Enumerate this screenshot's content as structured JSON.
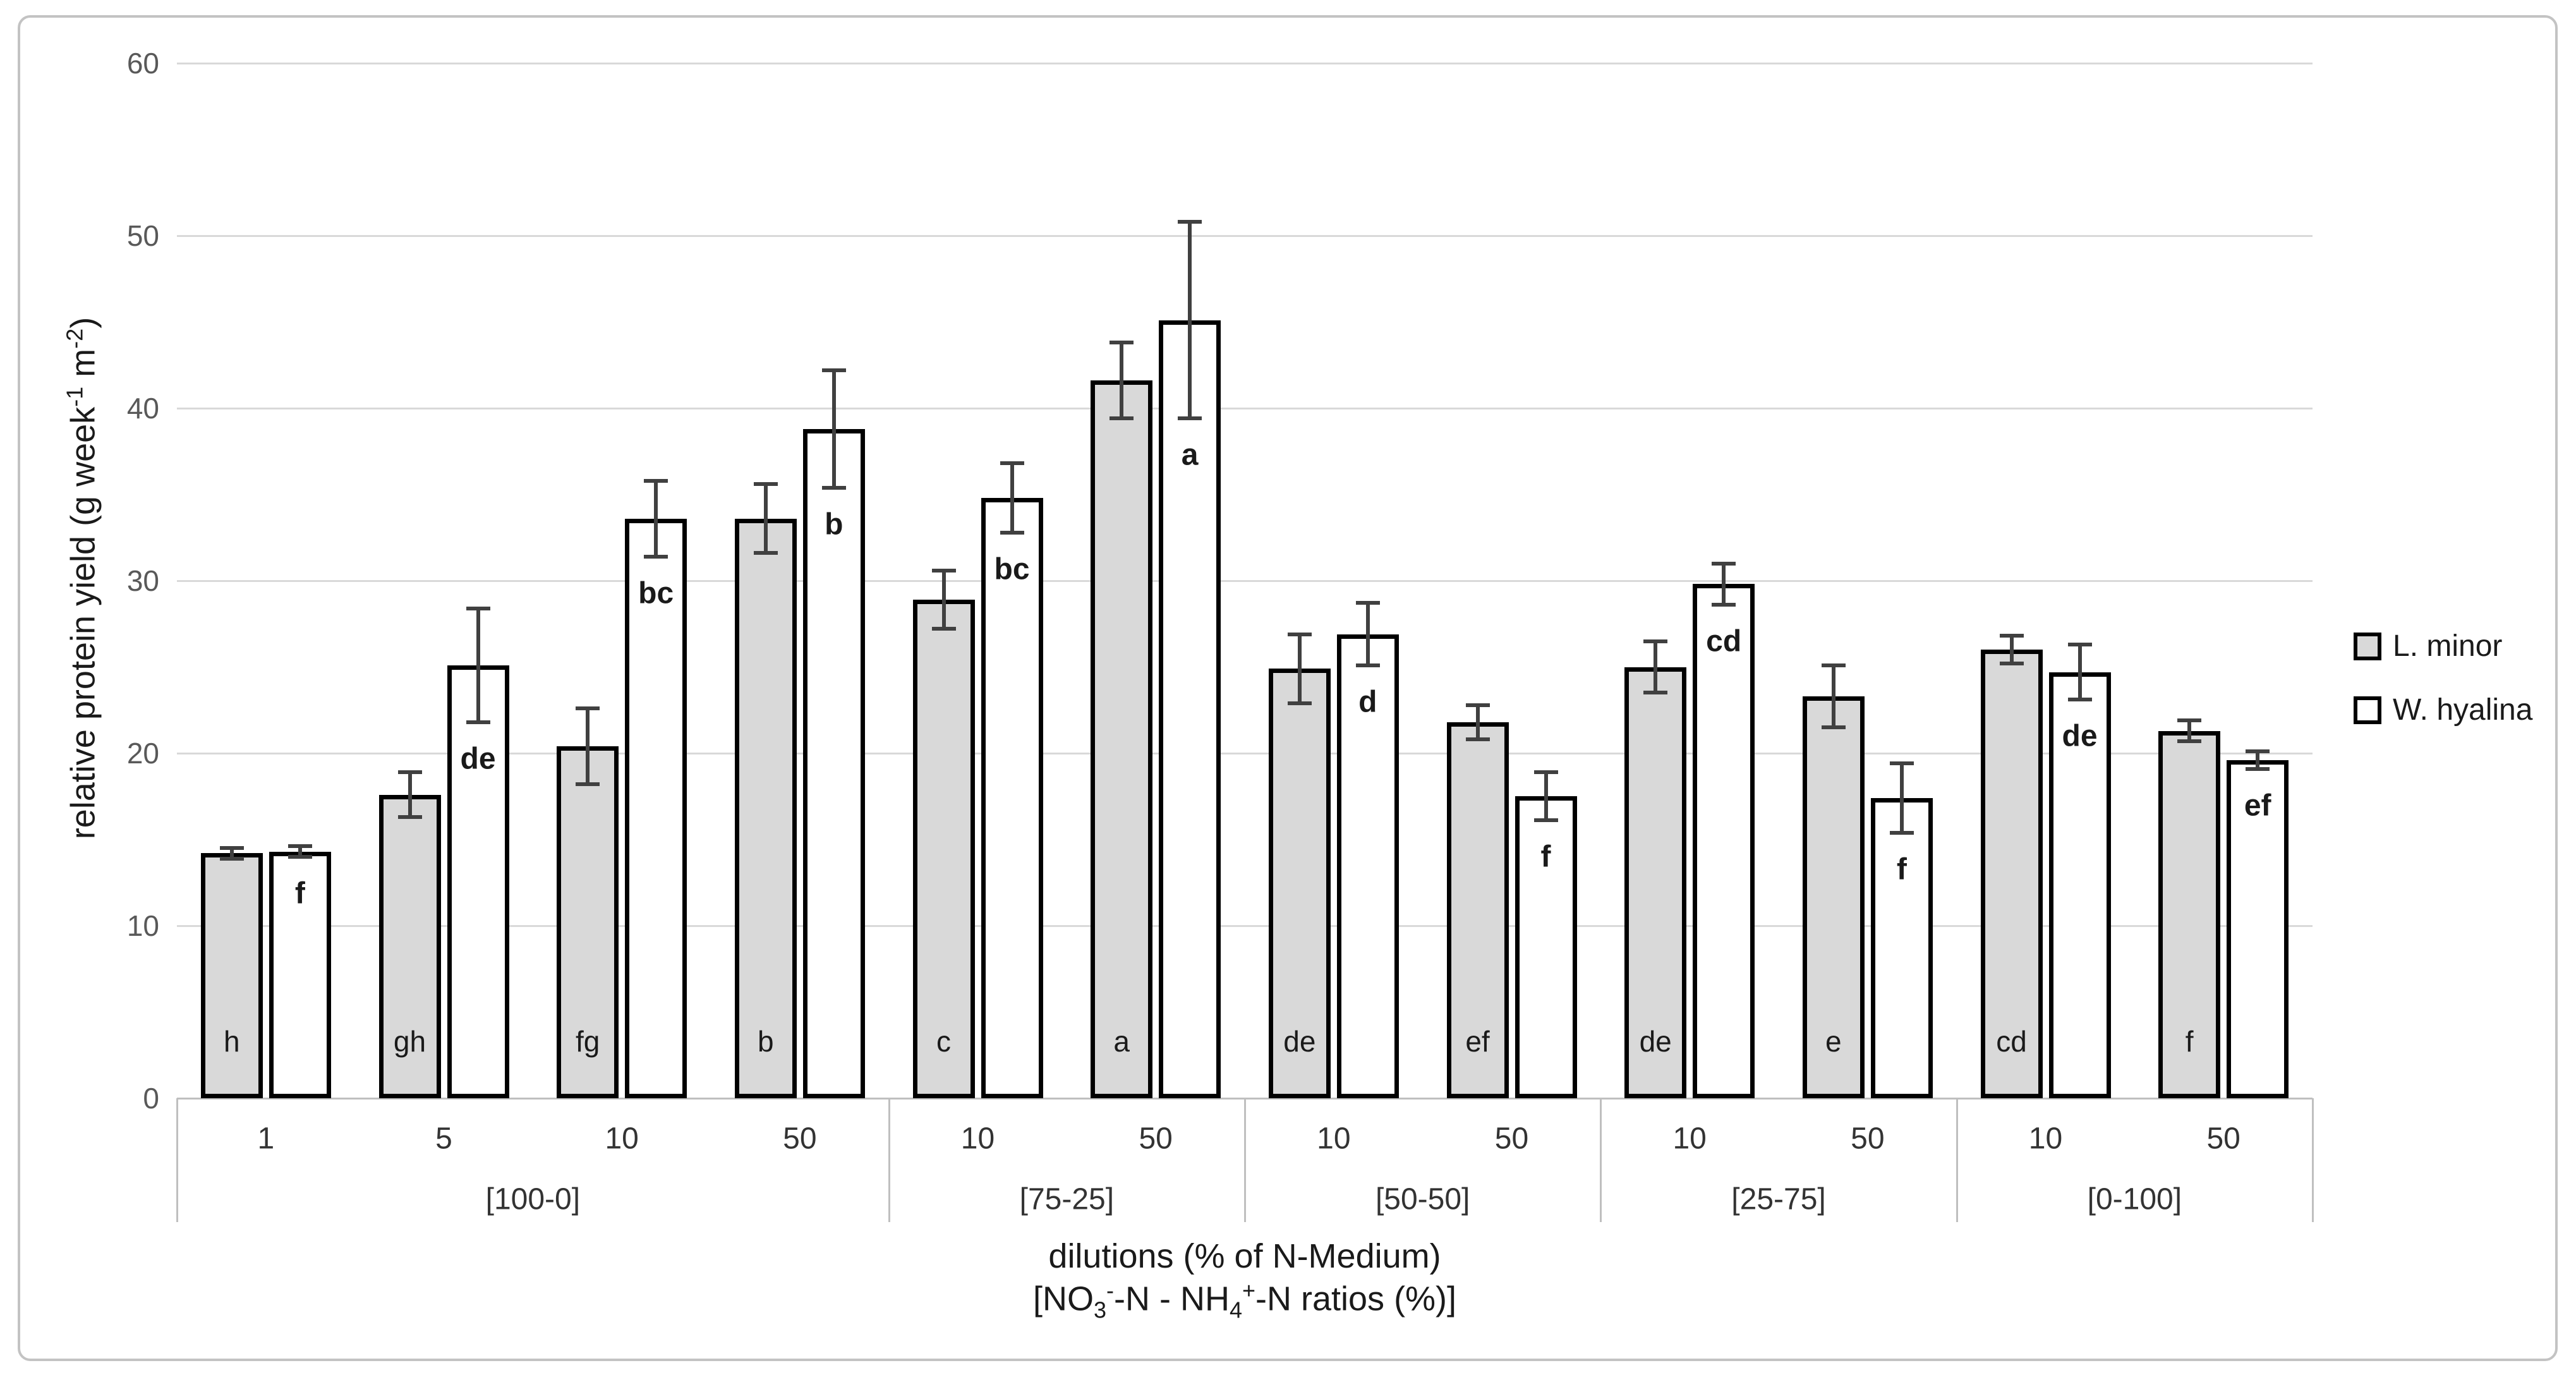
{
  "style": {
    "bar_fill_l_minor": "#d9d9d9",
    "bar_fill_w_hyalina": "#ffffff",
    "bar_border": "#000000",
    "gridline": "#d9d9d9",
    "axis_line": "#bfbfbf",
    "error_bar": "#404040",
    "tick_label": "#595959",
    "text": "#1a1a1a"
  },
  "y_title": {
    "pre": "relative protein yield (g week",
    "sup1": "-1",
    "mid": " m",
    "sup2": "-2",
    "post": ")"
  },
  "x_title_line1": "dilutions (% of N-Medium)",
  "x_title_line2": {
    "pre": "[NO",
    "sub1": "3",
    "sup1": "-",
    "mid": "-N - NH",
    "sub2": "4",
    "sup2": "+",
    "post": "-N ratios (%)]"
  },
  "chart_data": {
    "type": "bar",
    "title": "",
    "ylabel": "relative protein yield (g week-1 m-2)",
    "xlabel": "dilutions (% of N-Medium) [NO3--N - NH4+-N ratios (%)]",
    "ylim": [
      0,
      60
    ],
    "yticks": [
      0,
      10,
      20,
      30,
      40,
      50,
      60
    ],
    "grid": true,
    "legend_position": "right",
    "legend": [
      {
        "label": "L. minor",
        "fill": "#d9d9d9"
      },
      {
        "label": "W. hyalina",
        "fill": "#ffffff"
      }
    ],
    "series": [
      "L. minor",
      "W. hyalina"
    ],
    "groups": [
      {
        "label": "[100-0]",
        "items": [
          {
            "dilution": "1",
            "bars": [
              {
                "series": "L. minor",
                "value": 14.2,
                "err": 0.3,
                "letter": "h"
              },
              {
                "series": "W. hyalina",
                "value": 14.3,
                "err": 0.3,
                "letter": "f"
              }
            ]
          },
          {
            "dilution": "5",
            "bars": [
              {
                "series": "L. minor",
                "value": 17.6,
                "err": 1.3,
                "letter": "gh"
              },
              {
                "series": "W. hyalina",
                "value": 25.1,
                "err": 3.3,
                "letter": "de"
              }
            ]
          },
          {
            "dilution": "10",
            "bars": [
              {
                "series": "L. minor",
                "value": 20.4,
                "err": 2.2,
                "letter": "fg"
              },
              {
                "series": "W. hyalina",
                "value": 33.6,
                "err": 2.2,
                "letter": "bc"
              }
            ]
          },
          {
            "dilution": "50",
            "bars": [
              {
                "series": "L. minor",
                "value": 33.6,
                "err": 2.0,
                "letter": "b"
              },
              {
                "series": "W. hyalina",
                "value": 38.8,
                "err": 3.4,
                "letter": "b"
              }
            ]
          }
        ]
      },
      {
        "label": "[75-25]",
        "items": [
          {
            "dilution": "10",
            "bars": [
              {
                "series": "L. minor",
                "value": 28.9,
                "err": 1.7,
                "letter": "c"
              },
              {
                "series": "W. hyalina",
                "value": 34.8,
                "err": 2.0,
                "letter": "bc"
              }
            ]
          },
          {
            "dilution": "50",
            "bars": [
              {
                "series": "L. minor",
                "value": 41.6,
                "err": 2.2,
                "letter": "a"
              },
              {
                "series": "W. hyalina",
                "value": 45.1,
                "err": 5.7,
                "letter": "a"
              }
            ]
          }
        ]
      },
      {
        "label": "[50-50]",
        "items": [
          {
            "dilution": "10",
            "bars": [
              {
                "series": "L. minor",
                "value": 24.9,
                "err": 2.0,
                "letter": "de"
              },
              {
                "series": "W. hyalina",
                "value": 26.9,
                "err": 1.8,
                "letter": "d"
              }
            ]
          },
          {
            "dilution": "50",
            "bars": [
              {
                "series": "L. minor",
                "value": 21.8,
                "err": 1.0,
                "letter": "ef"
              },
              {
                "series": "W. hyalina",
                "value": 17.5,
                "err": 1.4,
                "letter": "f"
              }
            ]
          }
        ]
      },
      {
        "label": "[25-75]",
        "items": [
          {
            "dilution": "10",
            "bars": [
              {
                "series": "L. minor",
                "value": 25.0,
                "err": 1.5,
                "letter": "de"
              },
              {
                "series": "W. hyalina",
                "value": 29.8,
                "err": 1.2,
                "letter": "cd"
              }
            ]
          },
          {
            "dilution": "50",
            "bars": [
              {
                "series": "L. minor",
                "value": 23.3,
                "err": 1.8,
                "letter": "e"
              },
              {
                "series": "W. hyalina",
                "value": 17.4,
                "err": 2.0,
                "letter": "f"
              }
            ]
          }
        ]
      },
      {
        "label": "[0-100]",
        "items": [
          {
            "dilution": "10",
            "bars": [
              {
                "series": "L. minor",
                "value": 26.0,
                "err": 0.8,
                "letter": "cd"
              },
              {
                "series": "W. hyalina",
                "value": 24.7,
                "err": 1.6,
                "letter": "de"
              }
            ]
          },
          {
            "dilution": "50",
            "bars": [
              {
                "series": "L. minor",
                "value": 21.3,
                "err": 0.6,
                "letter": "f"
              },
              {
                "series": "W. hyalina",
                "value": 19.6,
                "err": 0.5,
                "letter": "ef"
              }
            ]
          }
        ]
      }
    ]
  }
}
